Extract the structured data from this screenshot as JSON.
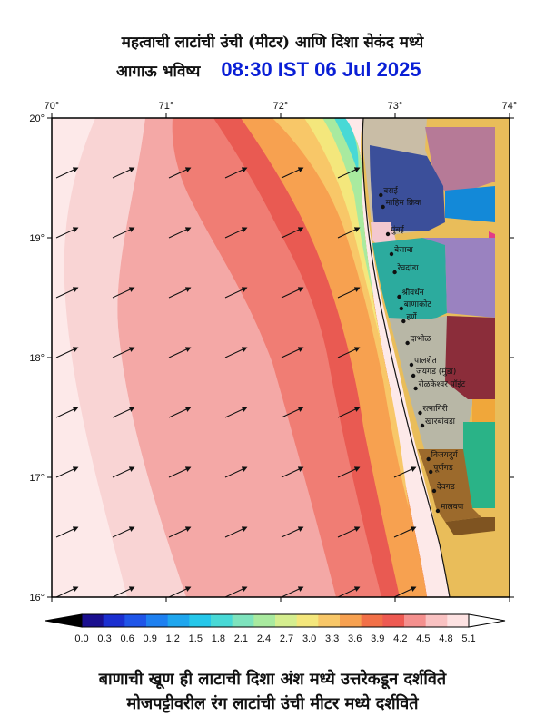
{
  "title": {
    "line1": "महत्वाची लाटांची उंची (मीटर) आणि दिशा सेकंद मध्ये",
    "line2_label": "आगाऊ भविष्य",
    "timestamp": "08:30 IST 06 Jul 2025"
  },
  "map": {
    "lon_ticks": [
      "70°",
      "71°",
      "72°",
      "73°",
      "74°"
    ],
    "lat_ticks": [
      "20°",
      "19°",
      "18°",
      "17°",
      "16°"
    ],
    "lon_range": [
      70,
      74
    ],
    "lat_range": [
      16,
      20
    ],
    "wave_direction_deg": 245,
    "places": [
      {
        "name": "वसई"
      },
      {
        "name": "माहिम क्रिक"
      },
      {
        "name": "मुंबई"
      },
      {
        "name": "बेसावा"
      },
      {
        "name": "रेवदांडा"
      },
      {
        "name": "श्रीवर्धन"
      },
      {
        "name": "बाणाकोट"
      },
      {
        "name": "हर्णे"
      },
      {
        "name": "दाभोळ"
      },
      {
        "name": "पालशेत"
      },
      {
        "name": "जयगड (मुंडा)"
      },
      {
        "name": "रोळकेश्वर पॉइंट"
      },
      {
        "name": "रत्नागिरी"
      },
      {
        "name": "खारबांवडा"
      },
      {
        "name": "विजयदुर्ग"
      },
      {
        "name": "पूर्णगड"
      },
      {
        "name": "देवगड"
      },
      {
        "name": "मालवण"
      }
    ]
  },
  "colorbar": {
    "ticks": [
      "0.0",
      "0.3",
      "0.6",
      "0.9",
      "1.2",
      "1.5",
      "1.8",
      "2.1",
      "2.4",
      "2.7",
      "3.0",
      "3.3",
      "3.6",
      "3.9",
      "4.2",
      "4.5",
      "4.8",
      "5.1"
    ],
    "colors": [
      "#1a0f8f",
      "#1b2fd0",
      "#1f55e8",
      "#1e80f0",
      "#1fa6ee",
      "#25c7ea",
      "#48d9d6",
      "#7ee3bd",
      "#a9ea9f",
      "#d5ee8f",
      "#f4e77c",
      "#f8c768",
      "#f7a150",
      "#f27048",
      "#ee5a52",
      "#f4908e",
      "#f9c2c2",
      "#fde2e2"
    ]
  },
  "footer": {
    "line1": "बाणाची खूण ही लाटाची दिशा अंश मध्ये उत्तरेकडून दर्शविते",
    "line2": "मोजपट्टीवरील रंग लाटांची उंची मीटर मध्ये दर्शविते"
  }
}
